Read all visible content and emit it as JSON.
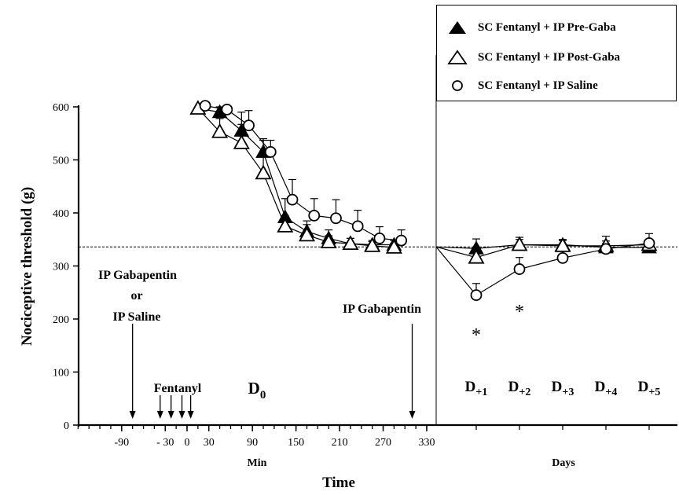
{
  "chart_data": {
    "type": "line",
    "ylabel": "Nociceptive threshold (g)",
    "xlabel": "Time",
    "xlabel_min": "Min",
    "xlabel_days": "Days",
    "ylim": [
      0,
      600
    ],
    "yticks": [
      0,
      100,
      200,
      300,
      400,
      500,
      600
    ],
    "min_xlim": [
      -150,
      345
    ],
    "min_xticks": [
      -90,
      -30,
      0,
      30,
      90,
      150,
      210,
      270,
      330
    ],
    "baseline": 336,
    "grid": false,
    "legend_position": "top-right",
    "day_categories": [
      "D+1",
      "D+2",
      "D+3",
      "D+4",
      "D+5"
    ],
    "day_labels": [
      {
        "base": "D",
        "sub": "+1"
      },
      {
        "base": "D",
        "sub": "+2"
      },
      {
        "base": "D",
        "sub": "+3"
      },
      {
        "base": "D",
        "sub": "+4"
      },
      {
        "base": "D",
        "sub": "+5"
      }
    ],
    "series": [
      {
        "name": "SC Fentanyl + IP Pre-Gaba",
        "marker": "triangle-filled",
        "min_x": [
          15,
          45,
          75,
          105,
          135,
          165,
          195,
          225,
          255,
          285
        ],
        "min_y": [
          597,
          590,
          555,
          515,
          392,
          365,
          352,
          342,
          340,
          340
        ],
        "min_err": [
          0,
          10,
          35,
          22,
          35,
          20,
          16,
          10,
          8,
          8
        ],
        "day_y": [
          333,
          340,
          340,
          335,
          335
        ],
        "day_err": [
          18,
          14,
          10,
          12,
          12
        ]
      },
      {
        "name": "SC Fentanyl + IP Post-Gaba",
        "marker": "triangle-open",
        "min_x": [
          15,
          45,
          75,
          105,
          135,
          165,
          195,
          225,
          255,
          285
        ],
        "min_y": [
          597,
          553,
          532,
          475,
          375,
          358,
          345,
          342,
          338,
          335
        ],
        "min_err": [
          0,
          25,
          35,
          65,
          20,
          20,
          12,
          10,
          8,
          8
        ],
        "day_y": [
          316,
          340,
          338,
          338,
          340
        ],
        "day_err": [
          12,
          10,
          10,
          18,
          10
        ]
      },
      {
        "name": "SC Fentanyl + IP Saline",
        "marker": "circle-open",
        "min_x": [
          25,
          55,
          85,
          115,
          145,
          175,
          205,
          235,
          265,
          295
        ],
        "min_y": [
          602,
          595,
          565,
          515,
          425,
          395,
          390,
          375,
          352,
          348
        ],
        "min_err": [
          0,
          0,
          28,
          22,
          38,
          32,
          35,
          30,
          22,
          20
        ],
        "day_y": [
          245,
          294,
          315,
          332,
          343
        ],
        "day_err": [
          22,
          22,
          20,
          10,
          18
        ]
      }
    ],
    "annotations": {
      "ip_label_line1": "IP Gabapentin",
      "ip_label_or": "or",
      "ip_label_line2": "IP Saline",
      "ip_gabapentin_right": "IP Gabapentin",
      "fentanyl": "Fentanyl",
      "d0_base": "D",
      "d0_sub": "0",
      "star": "*",
      "ip_arrow_x": -75,
      "fentanyl_arrows_x": [
        -37,
        -22,
        -7,
        5
      ],
      "ip_gaba_arrow_x": 310
    }
  }
}
